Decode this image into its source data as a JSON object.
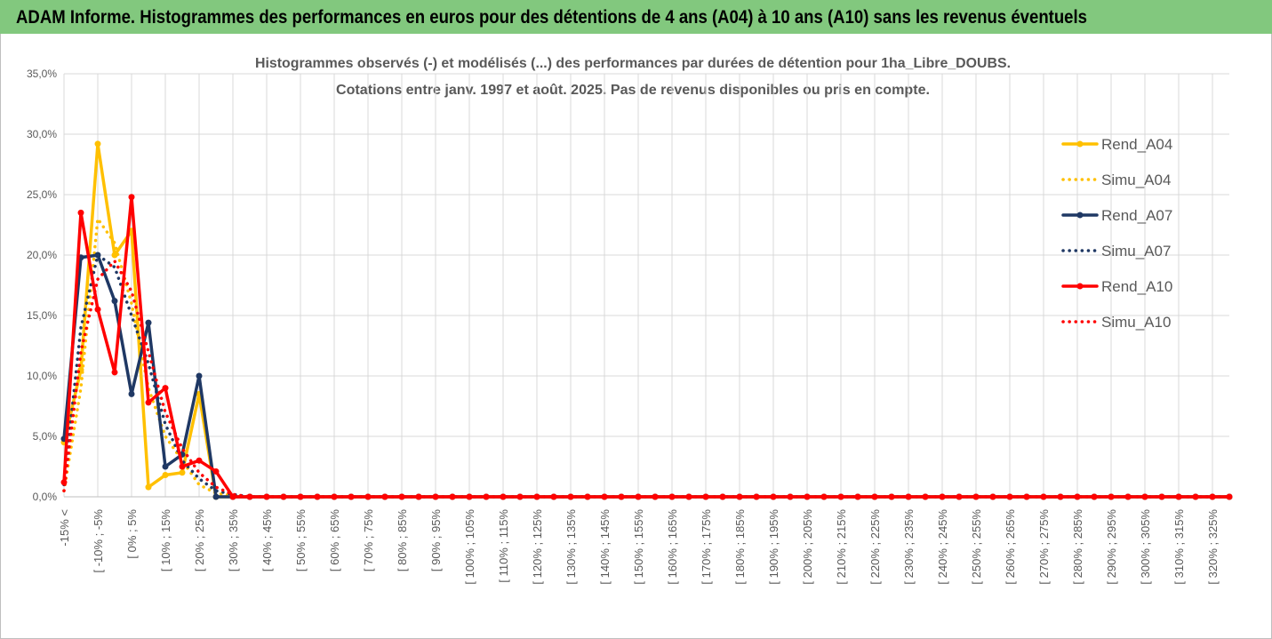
{
  "header": {
    "title": "ADAM Informe. Histogrammes des performances en euros pour des détentions de 4 ans (A04) à 10 ans (A10) sans les revenus éventuels"
  },
  "chart_data": {
    "type": "line",
    "title": [
      "Histogrammes observés (-) et modélisés (...) des performances par durées de détention pour 1ha_Libre_DOUBS.",
      "Cotations entre janv. 1997 et août. 2025. Pas de revenus disponibles ou pris en compte."
    ],
    "categories": [
      "-15% <",
      null,
      "[ -10% ; -5%",
      null,
      "[ 0% ; 5%",
      null,
      "[ 10% ; 15%",
      null,
      "[ 20% ; 25%",
      null,
      "[ 30% ; 35%",
      null,
      "[ 40% ; 45%",
      null,
      "[ 50% ; 55%",
      null,
      "[ 60% ; 65%",
      null,
      "[ 70% ; 75%",
      null,
      "[ 80% ; 85%",
      null,
      "[ 90% ; 95%",
      null,
      "[ 100% ; 105%",
      null,
      "[ 110% ; 115%",
      null,
      "[ 120% ; 125%",
      null,
      "[ 130% ; 135%",
      null,
      "[ 140% ; 145%",
      null,
      "[ 150% ; 155%",
      null,
      "[ 160% ; 165%",
      null,
      "[ 170% ; 175%",
      null,
      "[ 180% ; 185%",
      null,
      "[ 190% ; 195%",
      null,
      "[ 200% ; 205%",
      null,
      "[ 210% ; 215%",
      null,
      "[ 220% ; 225%",
      null,
      "[ 230% ; 235%",
      null,
      "[ 240% ; 245%",
      null,
      "[ 250% ; 255%",
      null,
      "[ 260% ; 265%",
      null,
      "[ 270% ; 275%",
      null,
      "[ 280% ; 285%",
      null,
      "[ 290% ; 295%",
      null,
      "[ 300% ; 305%",
      null,
      "[ 310% ; 315%",
      null,
      "[ 320% ; 325%",
      null
    ],
    "series": [
      {
        "name": "Rend_A04",
        "color": "#ffc000",
        "line_style": "solid",
        "markers": true,
        "values": [
          4.5,
          10.5,
          29.2,
          20,
          22,
          0.8,
          1.8,
          2,
          8.5,
          0,
          0,
          0,
          0,
          0,
          0,
          0,
          0,
          0,
          0,
          0,
          0,
          0,
          0,
          0,
          0,
          0,
          0,
          0,
          0,
          0,
          0,
          0,
          0,
          0,
          0,
          0,
          0,
          0,
          0,
          0,
          0,
          0,
          0,
          0,
          0,
          0,
          0,
          0,
          0,
          0,
          0,
          0,
          0,
          0,
          0,
          0,
          0,
          0,
          0,
          0,
          0,
          0,
          0,
          0,
          0,
          0,
          0,
          0,
          0,
          0
        ]
      },
      {
        "name": "Simu_A04",
        "color": "#ffc000",
        "line_style": "dotted",
        "markers": false,
        "values": [
          0.5,
          9,
          23,
          21,
          16,
          9,
          5,
          3,
          1,
          0.3,
          0.1,
          0,
          0,
          0,
          0,
          0,
          0,
          0,
          0,
          0,
          0,
          0,
          0,
          0,
          0,
          0,
          0,
          0,
          0,
          0,
          0,
          0,
          0,
          0,
          0,
          0,
          0,
          0,
          0,
          0,
          0,
          0,
          0,
          0,
          0,
          0,
          0,
          0,
          0,
          0,
          0,
          0,
          0,
          0,
          0,
          0,
          0,
          0,
          0,
          0,
          0,
          0,
          0,
          0,
          0,
          0,
          0,
          0,
          0,
          0
        ]
      },
      {
        "name": "Rend_A07",
        "color": "#1f3864",
        "line_style": "solid",
        "markers": true,
        "values": [
          4.8,
          19.8,
          20,
          16.2,
          8.5,
          14.4,
          2.5,
          3.5,
          10,
          0,
          0,
          0,
          0,
          0,
          0,
          0,
          0,
          0,
          0,
          0,
          0,
          0,
          0,
          0,
          0,
          0,
          0,
          0,
          0,
          0,
          0,
          0,
          0,
          0,
          0,
          0,
          0,
          0,
          0,
          0,
          0,
          0,
          0,
          0,
          0,
          0,
          0,
          0,
          0,
          0,
          0,
          0,
          0,
          0,
          0,
          0,
          0,
          0,
          0,
          0,
          0,
          0,
          0,
          0,
          0,
          0,
          0,
          0,
          0,
          0
        ]
      },
      {
        "name": "Simu_A07",
        "color": "#1f3864",
        "line_style": "dotted",
        "markers": false,
        "values": [
          1,
          14,
          20,
          19,
          15,
          11,
          6,
          3,
          1.5,
          0.5,
          0.2,
          0,
          0,
          0,
          0,
          0,
          0,
          0,
          0,
          0,
          0,
          0,
          0,
          0,
          0,
          0,
          0,
          0,
          0,
          0,
          0,
          0,
          0,
          0,
          0,
          0,
          0,
          0,
          0,
          0,
          0,
          0,
          0,
          0,
          0,
          0,
          0,
          0,
          0,
          0,
          0,
          0,
          0,
          0,
          0,
          0,
          0,
          0,
          0,
          0,
          0,
          0,
          0,
          0,
          0,
          0,
          0,
          0,
          0,
          0
        ]
      },
      {
        "name": "Rend_A10",
        "color": "#ff0000",
        "line_style": "solid",
        "markers": true,
        "values": [
          1.2,
          23.5,
          15.5,
          10.3,
          24.8,
          7.8,
          9,
          2.5,
          3,
          2.1,
          0,
          0,
          0,
          0,
          0,
          0,
          0,
          0,
          0,
          0,
          0,
          0,
          0,
          0,
          0,
          0,
          0,
          0,
          0,
          0,
          0,
          0,
          0,
          0,
          0,
          0,
          0,
          0,
          0,
          0,
          0,
          0,
          0,
          0,
          0,
          0,
          0,
          0,
          0,
          0,
          0,
          0,
          0,
          0,
          0,
          0,
          0,
          0,
          0,
          0,
          0,
          0,
          0,
          0,
          0,
          0,
          0,
          0,
          0,
          0
        ]
      },
      {
        "name": "Simu_A10",
        "color": "#ff0000",
        "line_style": "dotted",
        "markers": false,
        "values": [
          0.5,
          12,
          18,
          19.5,
          17,
          12,
          7,
          4,
          2,
          0.8,
          0.2,
          0,
          0,
          0,
          0,
          0,
          0,
          0,
          0,
          0,
          0,
          0,
          0,
          0,
          0,
          0,
          0,
          0,
          0,
          0,
          0,
          0,
          0,
          0,
          0,
          0,
          0,
          0,
          0,
          0,
          0,
          0,
          0,
          0,
          0,
          0,
          0,
          0,
          0,
          0,
          0,
          0,
          0,
          0,
          0,
          0,
          0,
          0,
          0,
          0,
          0,
          0,
          0,
          0,
          0,
          0,
          0,
          0,
          0,
          0
        ]
      }
    ],
    "ylim": [
      0,
      35
    ],
    "yticks": [
      {
        "value": 0,
        "label": "0,0%"
      },
      {
        "value": 5,
        "label": "5,0%"
      },
      {
        "value": 10,
        "label": "10,0%"
      },
      {
        "value": 15,
        "label": "15,0%"
      },
      {
        "value": 20,
        "label": "20,0%"
      },
      {
        "value": 25,
        "label": "25,0%"
      },
      {
        "value": 30,
        "label": "30,0%"
      },
      {
        "value": 35,
        "label": "35,0%"
      }
    ],
    "grid": true,
    "legend": "right"
  }
}
